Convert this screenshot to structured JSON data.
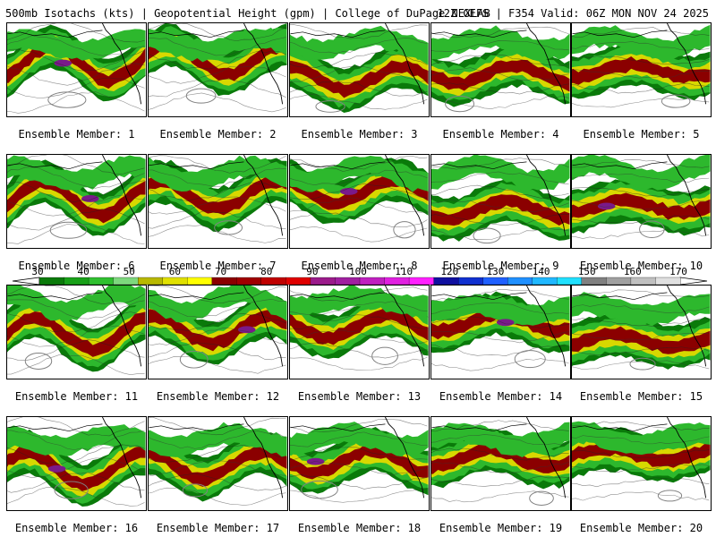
{
  "header": {
    "left": "500mb Isotachs (kts) | Geopotential Height (gpm) | College of DuPage NEXLAB",
    "right": "12Z GEFS | F354 Valid: 06Z MON NOV 24 2025"
  },
  "members": [
    {
      "label": "Ensemble Member: 1"
    },
    {
      "label": "Ensemble Member: 2"
    },
    {
      "label": "Ensemble Member: 3"
    },
    {
      "label": "Ensemble Member: 4"
    },
    {
      "label": "Ensemble Member: 5"
    },
    {
      "label": "Ensemble Member: 6"
    },
    {
      "label": "Ensemble Member: 7"
    },
    {
      "label": "Ensemble Member: 8"
    },
    {
      "label": "Ensemble Member: 9"
    },
    {
      "label": "Ensemble Member: 10"
    },
    {
      "label": "Ensemble Member: 11"
    },
    {
      "label": "Ensemble Member: 12"
    },
    {
      "label": "Ensemble Member: 13"
    },
    {
      "label": "Ensemble Member: 14"
    },
    {
      "label": "Ensemble Member: 15"
    },
    {
      "label": "Ensemble Member: 16"
    },
    {
      "label": "Ensemble Member: 17"
    },
    {
      "label": "Ensemble Member: 18"
    },
    {
      "label": "Ensemble Member: 19"
    },
    {
      "label": "Ensemble Member: 20"
    }
  ],
  "colorbar": {
    "labels": [
      "30",
      "40",
      "50",
      "60",
      "70",
      "80",
      "90",
      "100",
      "110",
      "120",
      "130",
      "140",
      "150",
      "160",
      "170"
    ],
    "colors": [
      "#0a7a0a",
      "#18a018",
      "#30c030",
      "#7dd87d",
      "#b8b800",
      "#e0e000",
      "#ffff00",
      "#8b0000",
      "#a00000",
      "#c00000",
      "#e00000",
      "#9b1b8b",
      "#a020a0",
      "#c020c0",
      "#e020e0",
      "#ff20ff",
      "#1010a0",
      "#1030d0",
      "#2060ff",
      "#2090ff",
      "#20b8ff",
      "#20e0ff",
      "#808080",
      "#a0a0a0",
      "#c0c0c0",
      "#e0e0e0"
    ]
  },
  "colors": {
    "jet_green_dark": "#0a7a0a",
    "jet_green": "#2db82d",
    "jet_yellow": "#d8d800",
    "jet_core": "#8b0000",
    "jet_max": "#7a1a8a",
    "height_contour": "#808080",
    "coastline": "#000000"
  }
}
